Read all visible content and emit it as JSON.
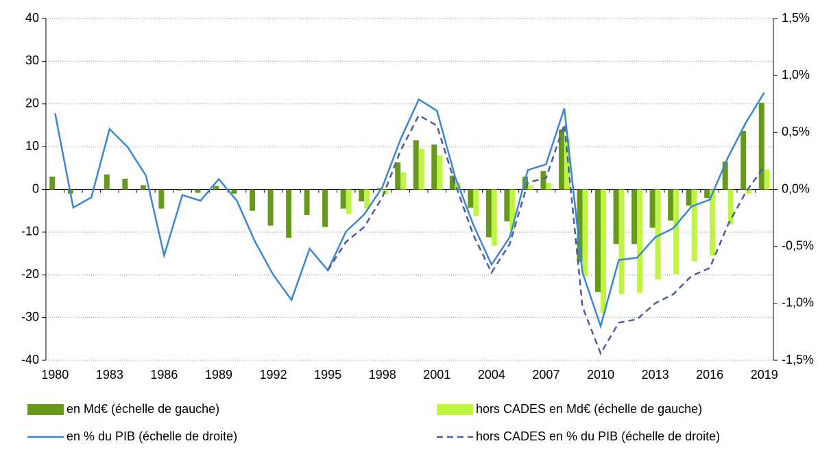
{
  "chart_data": {
    "type": "combo",
    "categories": [
      "1980",
      null,
      null,
      "1983",
      null,
      null,
      "1986",
      null,
      null,
      "1989",
      null,
      null,
      "1992",
      null,
      null,
      "1995",
      null,
      null,
      "1998",
      null,
      null,
      "2001",
      null,
      null,
      "2004",
      null,
      null,
      "2007",
      null,
      null,
      "2010",
      null,
      null,
      "2013",
      null,
      null,
      "2016",
      null,
      null,
      "2019"
    ],
    "ylim": [
      -40,
      40
    ],
    "yticks": [
      -40,
      -30,
      -20,
      -10,
      0,
      10,
      20,
      30,
      40
    ],
    "y2lim": [
      -1.5,
      1.5
    ],
    "y2ticks": [
      {
        "value": -1.5,
        "label": "-1,5%"
      },
      {
        "value": -1.0,
        "label": "-1,0%"
      },
      {
        "value": -0.5,
        "label": "-0,5%"
      },
      {
        "value": 0,
        "label": "0,0%"
      },
      {
        "value": 0.5,
        "label": "0,5%"
      },
      {
        "value": 1.0,
        "label": "1,0%"
      },
      {
        "value": 1.5,
        "label": "1,5%"
      }
    ],
    "grid": true,
    "legend": "bottom",
    "series": [
      {
        "name": "en Md€ (échelle de gauche)",
        "type": "bar",
        "color": "#66991c",
        "values": [
          3,
          -1,
          0,
          3.5,
          2.5,
          1,
          -4.5,
          -0.3,
          -0.8,
          0.8,
          -1,
          -5,
          -8.5,
          -11.3,
          -6,
          -8.8,
          -4.5,
          -2.8,
          0.3,
          6.3,
          11.5,
          10.5,
          3.2,
          -4.3,
          -11.2,
          -7.5,
          3,
          4.3,
          14,
          -17,
          -24,
          -12.8,
          -12.8,
          -9,
          -7.3,
          -3.8,
          -2,
          6.5,
          13.7,
          20.3
        ]
      },
      {
        "name": "hors CADES en Md€ (échelle de gauche)",
        "type": "bar",
        "color": "#bff542",
        "values": [
          null,
          null,
          null,
          null,
          null,
          null,
          null,
          null,
          null,
          null,
          null,
          null,
          null,
          null,
          null,
          null,
          -5.8,
          -4.5,
          -1.2,
          4,
          9.5,
          8,
          1.5,
          -6.2,
          -13.2,
          -9.5,
          1,
          1.5,
          12,
          -20.3,
          -29,
          -24.5,
          -24.2,
          -21,
          -19.8,
          -16.8,
          -15.5,
          -8.2,
          -1,
          4.7
        ]
      },
      {
        "name": "en % du PIB (échelle de droite)",
        "type": "line",
        "axis": "y2",
        "color": "#3a86d4",
        "line_style": "solid",
        "values": [
          0.67,
          -0.16,
          -0.07,
          0.53,
          0.37,
          0.12,
          -0.58,
          -0.05,
          -0.1,
          0.09,
          -0.1,
          -0.46,
          -0.75,
          -0.97,
          -0.52,
          -0.71,
          -0.37,
          -0.22,
          0.02,
          0.44,
          0.79,
          0.69,
          0.11,
          -0.31,
          -0.66,
          -0.42,
          0.17,
          0.22,
          0.71,
          -0.73,
          -1.2,
          -0.62,
          -0.6,
          -0.42,
          -0.34,
          -0.15,
          -0.09,
          0.28,
          0.59,
          0.85
        ]
      },
      {
        "name": "hors CADES en % du PIB (échelle de droite)",
        "type": "line",
        "axis": "y2",
        "color": "#4a5c9e",
        "line_style": "dashed",
        "values": [
          null,
          null,
          null,
          null,
          null,
          null,
          null,
          null,
          null,
          null,
          null,
          null,
          null,
          null,
          null,
          -0.71,
          -0.46,
          -0.33,
          -0.07,
          0.34,
          0.65,
          0.56,
          0.05,
          -0.4,
          -0.73,
          -0.48,
          0.06,
          0.1,
          0.57,
          -1.03,
          -1.44,
          -1.17,
          -1.14,
          -1.0,
          -0.92,
          -0.76,
          -0.69,
          -0.31,
          -0.02,
          0.2
        ]
      }
    ]
  }
}
